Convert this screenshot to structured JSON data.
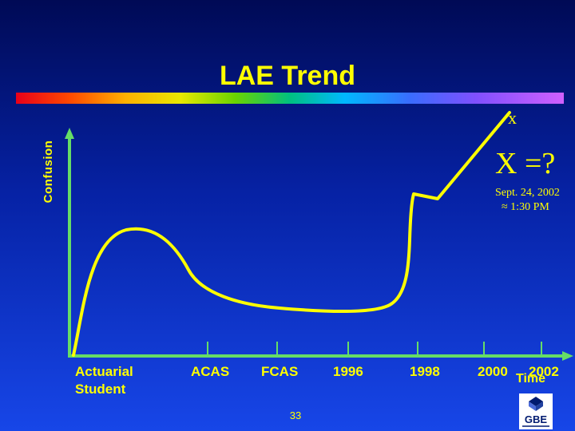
{
  "slide": {
    "title": "LAE Trend",
    "y_axis_label": "Confusion",
    "x_axis_label": "Time",
    "x_marker": "x",
    "x_question": "X =?",
    "date_line": "Sept. 24, 2002",
    "time_line": "≈ 1:30 PM",
    "categories": [
      "Actuarial\nStudent",
      "ACAS",
      "FCAS",
      "1996",
      "1998",
      "2000",
      "2002"
    ],
    "page_number": "33",
    "logo_text": "GBE"
  },
  "colors": {
    "accent": "#ffff00",
    "axis": "#66dd66",
    "background_top": "#000a55",
    "background_bottom": "#1746e8"
  }
}
